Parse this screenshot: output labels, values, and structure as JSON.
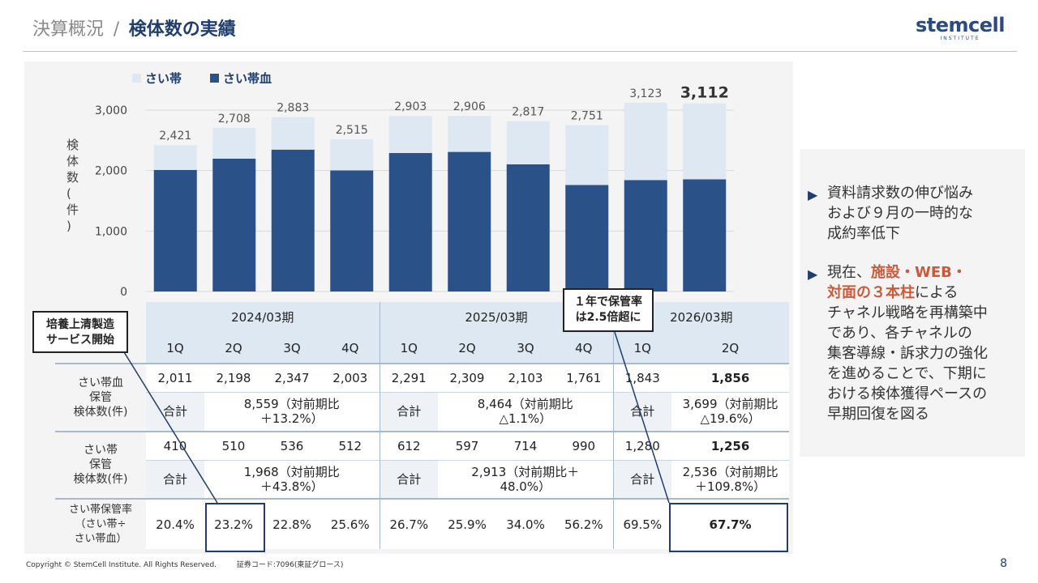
{
  "header": {
    "title_prefix": "決算概況",
    "title_sep": "/",
    "title_main": "検体数の実績",
    "logo_main": "stemcell",
    "logo_sub": "INSTITUTE"
  },
  "chart_data": {
    "type": "bar",
    "stacked": true,
    "ylabel": "検体数(件)",
    "ylim": [
      0,
      3000
    ],
    "yticks": [
      0,
      1000,
      2000,
      3000
    ],
    "ytick_labels": [
      "0",
      "1,000",
      "2,000",
      "3,000"
    ],
    "categories": [
      "2024/03期 1Q",
      "2024/03期 2Q",
      "2024/03期 3Q",
      "2024/03期 4Q",
      "2025/03期 1Q",
      "2025/03期 2Q",
      "2025/03期 3Q",
      "2025/03期 4Q",
      "2026/03期 1Q",
      "2026/03期 2Q"
    ],
    "series": [
      {
        "name": "さい帯血",
        "color": "#2b5189",
        "values": [
          2011,
          2198,
          2347,
          2003,
          2291,
          2309,
          2103,
          1761,
          1843,
          1856
        ]
      },
      {
        "name": "さい帯",
        "color": "#dde8f2",
        "values": [
          410,
          510,
          536,
          512,
          612,
          597,
          714,
          990,
          1280,
          1256
        ]
      }
    ],
    "totals": [
      2421,
      2708,
      2883,
      2515,
      2903,
      2906,
      2817,
      2751,
      3123,
      3112
    ],
    "total_labels": [
      "2,421",
      "2,708",
      "2,883",
      "2,515",
      "2,903",
      "2,906",
      "2,817",
      "2,751",
      "3,123",
      "3,112"
    ],
    "legend": [
      "さい帯",
      "さい帯血"
    ],
    "legend_position": "top-left"
  },
  "table": {
    "periods": [
      "2024/03期",
      "2025/03期",
      "2026/03期"
    ],
    "quarters": [
      "1Q",
      "2Q",
      "3Q",
      "4Q",
      "1Q",
      "2Q",
      "3Q",
      "4Q",
      "1Q",
      "2Q"
    ],
    "cord_blood": {
      "label": "さい帯血\n保管\n検体数(件)",
      "values": [
        "2,011",
        "2,198",
        "2,347",
        "2,003",
        "2,291",
        "2,309",
        "2,103",
        "1,761",
        "1,843",
        "1,856"
      ],
      "sum_label": "合計",
      "sums": [
        "8,559（対前期比\n＋13.2%）",
        "8,464（対前期比\n△1.1%）",
        "3,699（対前期比\n△19.6%）"
      ]
    },
    "cord": {
      "label": "さい帯\n保管\n検体数(件)",
      "values": [
        "410",
        "510",
        "536",
        "512",
        "612",
        "597",
        "714",
        "990",
        "1,280",
        "1,256"
      ],
      "sum_label": "合計",
      "sums": [
        "1,968（対前期比\n＋43.8%）",
        "2,913（対前期比＋\n48.0%）",
        "2,536（対前期比\n＋109.8%）"
      ]
    },
    "ratio": {
      "label": "さい帯保管率\n（さい帯÷\nさい帯血）",
      "values": [
        "20.4%",
        "23.2%",
        "22.8%",
        "25.6%",
        "26.7%",
        "25.9%",
        "34.0%",
        "56.2%",
        "69.5%",
        "67.7%"
      ]
    }
  },
  "callouts": {
    "left": "培養上清製造\nサービス開始",
    "right": "１年で保管率\nは2.5倍超に"
  },
  "side": {
    "point1": "資料請求数の伸び悩み\nおよび９月の一時的な\n成約率低下",
    "point2_pre": "現在、",
    "point2_hl1": "施設・WEB・",
    "point2_hl2": "対面の３本柱",
    "point2_post": "による\nチャネル戦略を再構築中\nであり、各チャネルの\n集客導線・訴求力の強化\nを進めることで、下期に\nおける検体獲得ペースの\n早期回復を図る"
  },
  "footer": {
    "copyright": "Copyright © StemCell Institute. All Rights Reserved.",
    "code": "証券コード:7096(東証グロース)",
    "page": "8"
  }
}
